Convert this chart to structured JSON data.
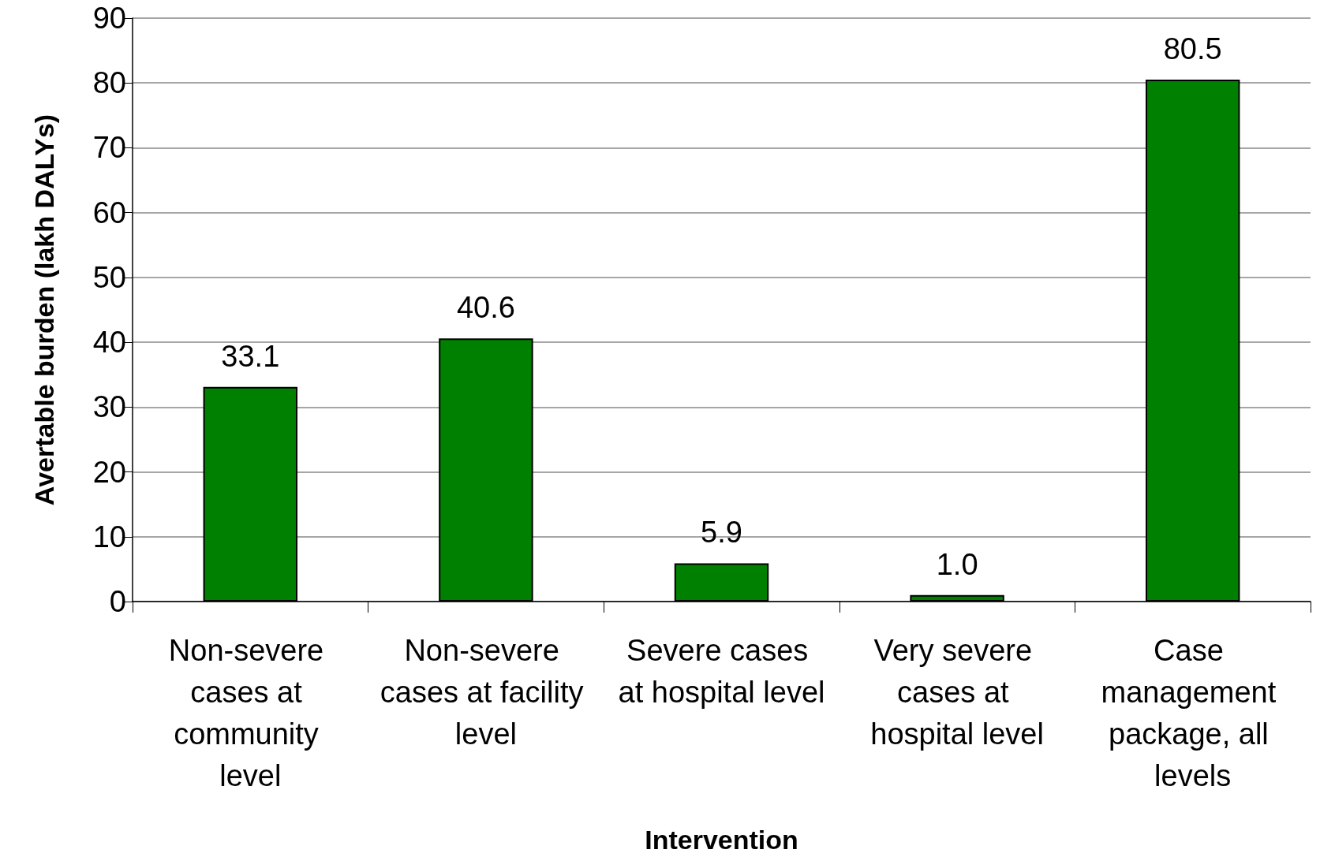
{
  "chart_data": {
    "type": "bar",
    "xlabel": "Intervention",
    "ylabel": "Avertable burden (lakh DALYs)",
    "categories": [
      "Non-severe cases at community level",
      "Non-severe cases at facility level",
      "Severe cases at hospital level",
      "Very severe cases at hospital level",
      "Case management package, all levels"
    ],
    "values": [
      33.1,
      40.6,
      5.9,
      1.0,
      80.5
    ],
    "value_labels": [
      "33.1",
      "40.6",
      "5.9",
      "1.0",
      "80.5"
    ],
    "color": "#008000",
    "ylim": [
      0,
      90
    ],
    "yticks": [
      0,
      10,
      20,
      30,
      40,
      50,
      60,
      70,
      80,
      90
    ],
    "grid": "y"
  }
}
